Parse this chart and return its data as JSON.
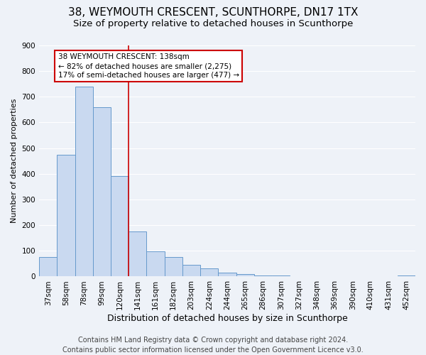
{
  "title": "38, WEYMOUTH CRESCENT, SCUNTHORPE, DN17 1TX",
  "subtitle": "Size of property relative to detached houses in Scunthorpe",
  "xlabel": "Distribution of detached houses by size in Scunthorpe",
  "ylabel": "Number of detached properties",
  "bar_labels": [
    "37sqm",
    "58sqm",
    "78sqm",
    "99sqm",
    "120sqm",
    "141sqm",
    "161sqm",
    "182sqm",
    "203sqm",
    "224sqm",
    "244sqm",
    "265sqm",
    "286sqm",
    "307sqm",
    "327sqm",
    "348sqm",
    "369sqm",
    "390sqm",
    "410sqm",
    "431sqm",
    "452sqm"
  ],
  "bar_values": [
    75,
    475,
    740,
    660,
    390,
    175,
    98,
    75,
    45,
    32,
    15,
    10,
    5,
    3,
    2,
    1,
    0,
    0,
    0,
    0,
    5
  ],
  "bar_color": "#c9d9f0",
  "bar_edge_color": "#6699cc",
  "vline_index": 5,
  "vline_color": "#cc0000",
  "ylim": [
    0,
    900
  ],
  "yticks": [
    0,
    100,
    200,
    300,
    400,
    500,
    600,
    700,
    800,
    900
  ],
  "annotation_title": "38 WEYMOUTH CRESCENT: 138sqm",
  "annotation_line1": "← 82% of detached houses are smaller (2,275)",
  "annotation_line2": "17% of semi-detached houses are larger (477) →",
  "annotation_box_color": "#ffffff",
  "annotation_box_edge": "#cc0000",
  "footer1": "Contains HM Land Registry data © Crown copyright and database right 2024.",
  "footer2": "Contains public sector information licensed under the Open Government Licence v3.0.",
  "background_color": "#eef2f8",
  "grid_color": "#ffffff",
  "title_fontsize": 11,
  "subtitle_fontsize": 9.5,
  "xlabel_fontsize": 9,
  "ylabel_fontsize": 8,
  "tick_fontsize": 7.5,
  "annot_fontsize": 7.5,
  "footer_fontsize": 7
}
